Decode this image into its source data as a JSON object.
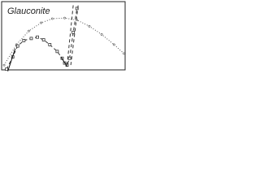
{
  "chart_data": {
    "type": "line",
    "annotation": "Glauconite",
    "xlim": [
      0,
      10
    ],
    "ylim": [
      0,
      10
    ],
    "series": [
      {
        "color": "#555555",
        "line_style": "dotted",
        "marker": "dot",
        "x": [
          0.2,
          1.2,
          2.2,
          3.2,
          4.1,
          5.1,
          6.1,
          7.1,
          8.1,
          9.1,
          9.9
        ],
        "values": [
          0.7,
          3.7,
          5.7,
          6.9,
          7.5,
          7.6,
          7.3,
          6.4,
          5.2,
          3.7,
          2.4
        ]
      },
      {
        "color": "#333333",
        "line_style": "dashed",
        "marker": "square",
        "x": [
          0.4,
          0.9,
          1.3,
          1.8,
          2.4,
          2.9,
          3.4,
          3.9,
          4.5,
          4.9,
          5.1,
          5.3,
          5.5,
          5.8,
          6.1
        ],
        "values": [
          0.1,
          1.9,
          3.5,
          4.3,
          4.6,
          4.8,
          4.4,
          3.7,
          2.7,
          1.7,
          1.0,
          0.7,
          1.7,
          5.5,
          9.0
        ]
      },
      {
        "color": "#333333",
        "line_style": "dashed",
        "marker": "none",
        "x": [
          5.3,
          5.8
        ],
        "values": [
          0.7,
          9.5
        ]
      },
      {
        "color": "#333333",
        "line_style": "dashed",
        "marker": "none",
        "x": [
          5.6,
          6.2
        ],
        "values": [
          0.7,
          9.5
        ]
      },
      {
        "color": "#111111",
        "line_style": "solid",
        "marker": "none",
        "x": [
          0.5,
          1.1
        ],
        "values": [
          -0.2,
          3.1
        ]
      },
      {
        "color": "#111111",
        "line_style": "solid",
        "marker": "none",
        "x": [
          4.8,
          5.3
        ],
        "values": [
          1.9,
          0.5
        ]
      }
    ]
  }
}
